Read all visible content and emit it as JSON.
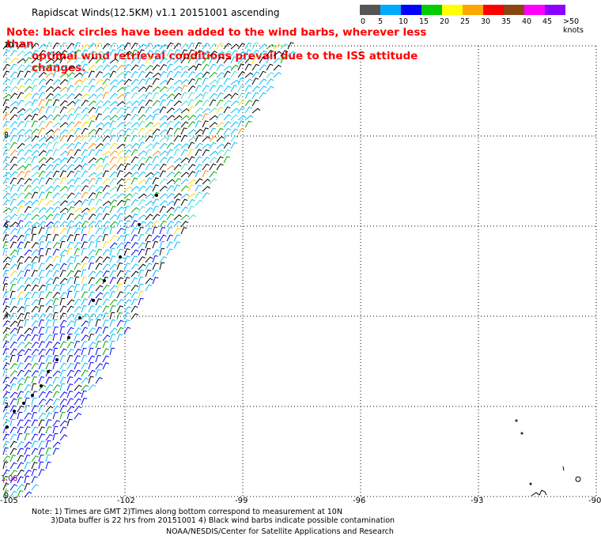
{
  "header": {
    "title": "Rapidscat Winds(12.5KM) v1.1 20151001 ascending",
    "note_line1": "Note: black circles have been added to the wind barbs, wherever less than",
    "note_line2": "optimal wind retrieval conditions prevail due to the ISS attitude changes."
  },
  "legend": {
    "colors": [
      "#555555",
      "#00aaff",
      "#0000ff",
      "#00cc00",
      "#ffff00",
      "#ffa500",
      "#ff0000",
      "#8b4513",
      "#ff00ff",
      "#8b00ff"
    ],
    "labels": [
      "0",
      "5",
      "10",
      "15",
      "20",
      "25",
      "30",
      "35",
      "40",
      "45",
      ">50 knots"
    ]
  },
  "axes": {
    "x_labels": [
      "-105",
      "-102",
      "-99",
      "-96",
      "-93",
      "-90"
    ],
    "y_labels": [
      "10",
      "8",
      "6",
      "4",
      "2",
      "0"
    ]
  },
  "time_label": "1:08",
  "footer": {
    "line1": "Note: 1) Times are GMT 2)Times along bottom correspond to measurement at 10N",
    "line2": "3)Data buffer is 22 hrs from 20151001 4) Black wind barbs indicate possible contamination",
    "line3": "NOAA/NESDIS/Center for Satellite Applications and Research"
  }
}
